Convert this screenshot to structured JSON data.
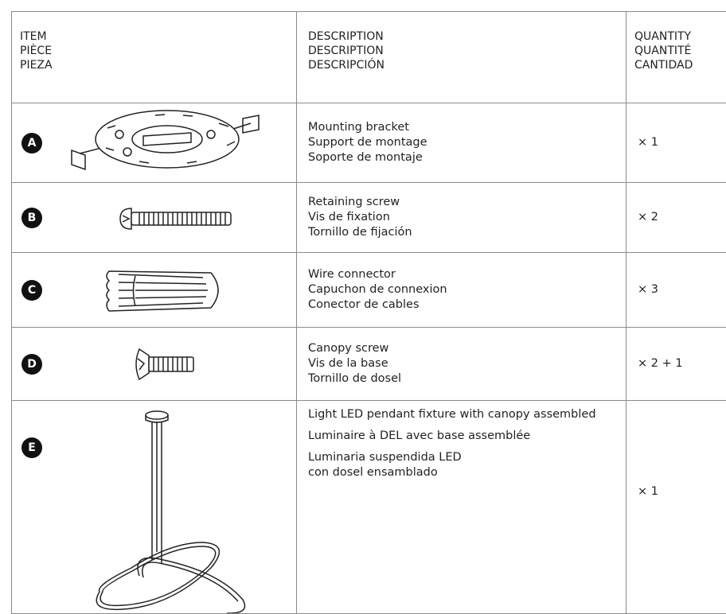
{
  "header": {
    "item": [
      "ITEM",
      "PIÈCE",
      "PIEZA"
    ],
    "description": [
      "DESCRIPTION",
      "DESCRIPTION",
      "DESCRIPCIÓN"
    ],
    "quantity": [
      "QUANTITY",
      "QUANTITÉ",
      "CANTIDAD"
    ]
  },
  "rows": [
    {
      "letter": "A",
      "description": [
        [
          "Mounting bracket",
          "Support de montage",
          "Soporte de montaje"
        ]
      ],
      "quantity": "× 1"
    },
    {
      "letter": "B",
      "description": [
        [
          "Retaining screw",
          "Vis de fixation",
          "Tornillo de fijación"
        ]
      ],
      "quantity": "× 2"
    },
    {
      "letter": "C",
      "description": [
        [
          "Wire connector",
          "Capuchon de connexion",
          "Conector de cables"
        ]
      ],
      "quantity": "× 3"
    },
    {
      "letter": "D",
      "description": [
        [
          "Canopy screw",
          "Vis de la base",
          "Tornillo de dosel"
        ]
      ],
      "quantity": "× 2 + 1"
    },
    {
      "letter": "E",
      "description": [
        [
          "Light LED pendant fixture with canopy assembled"
        ],
        [
          "Luminaire à DEL avec base assemblée"
        ],
        [
          "Luminaria suspendida LED",
          "con dosel ensamblado"
        ]
      ],
      "quantity": "× 1"
    }
  ]
}
